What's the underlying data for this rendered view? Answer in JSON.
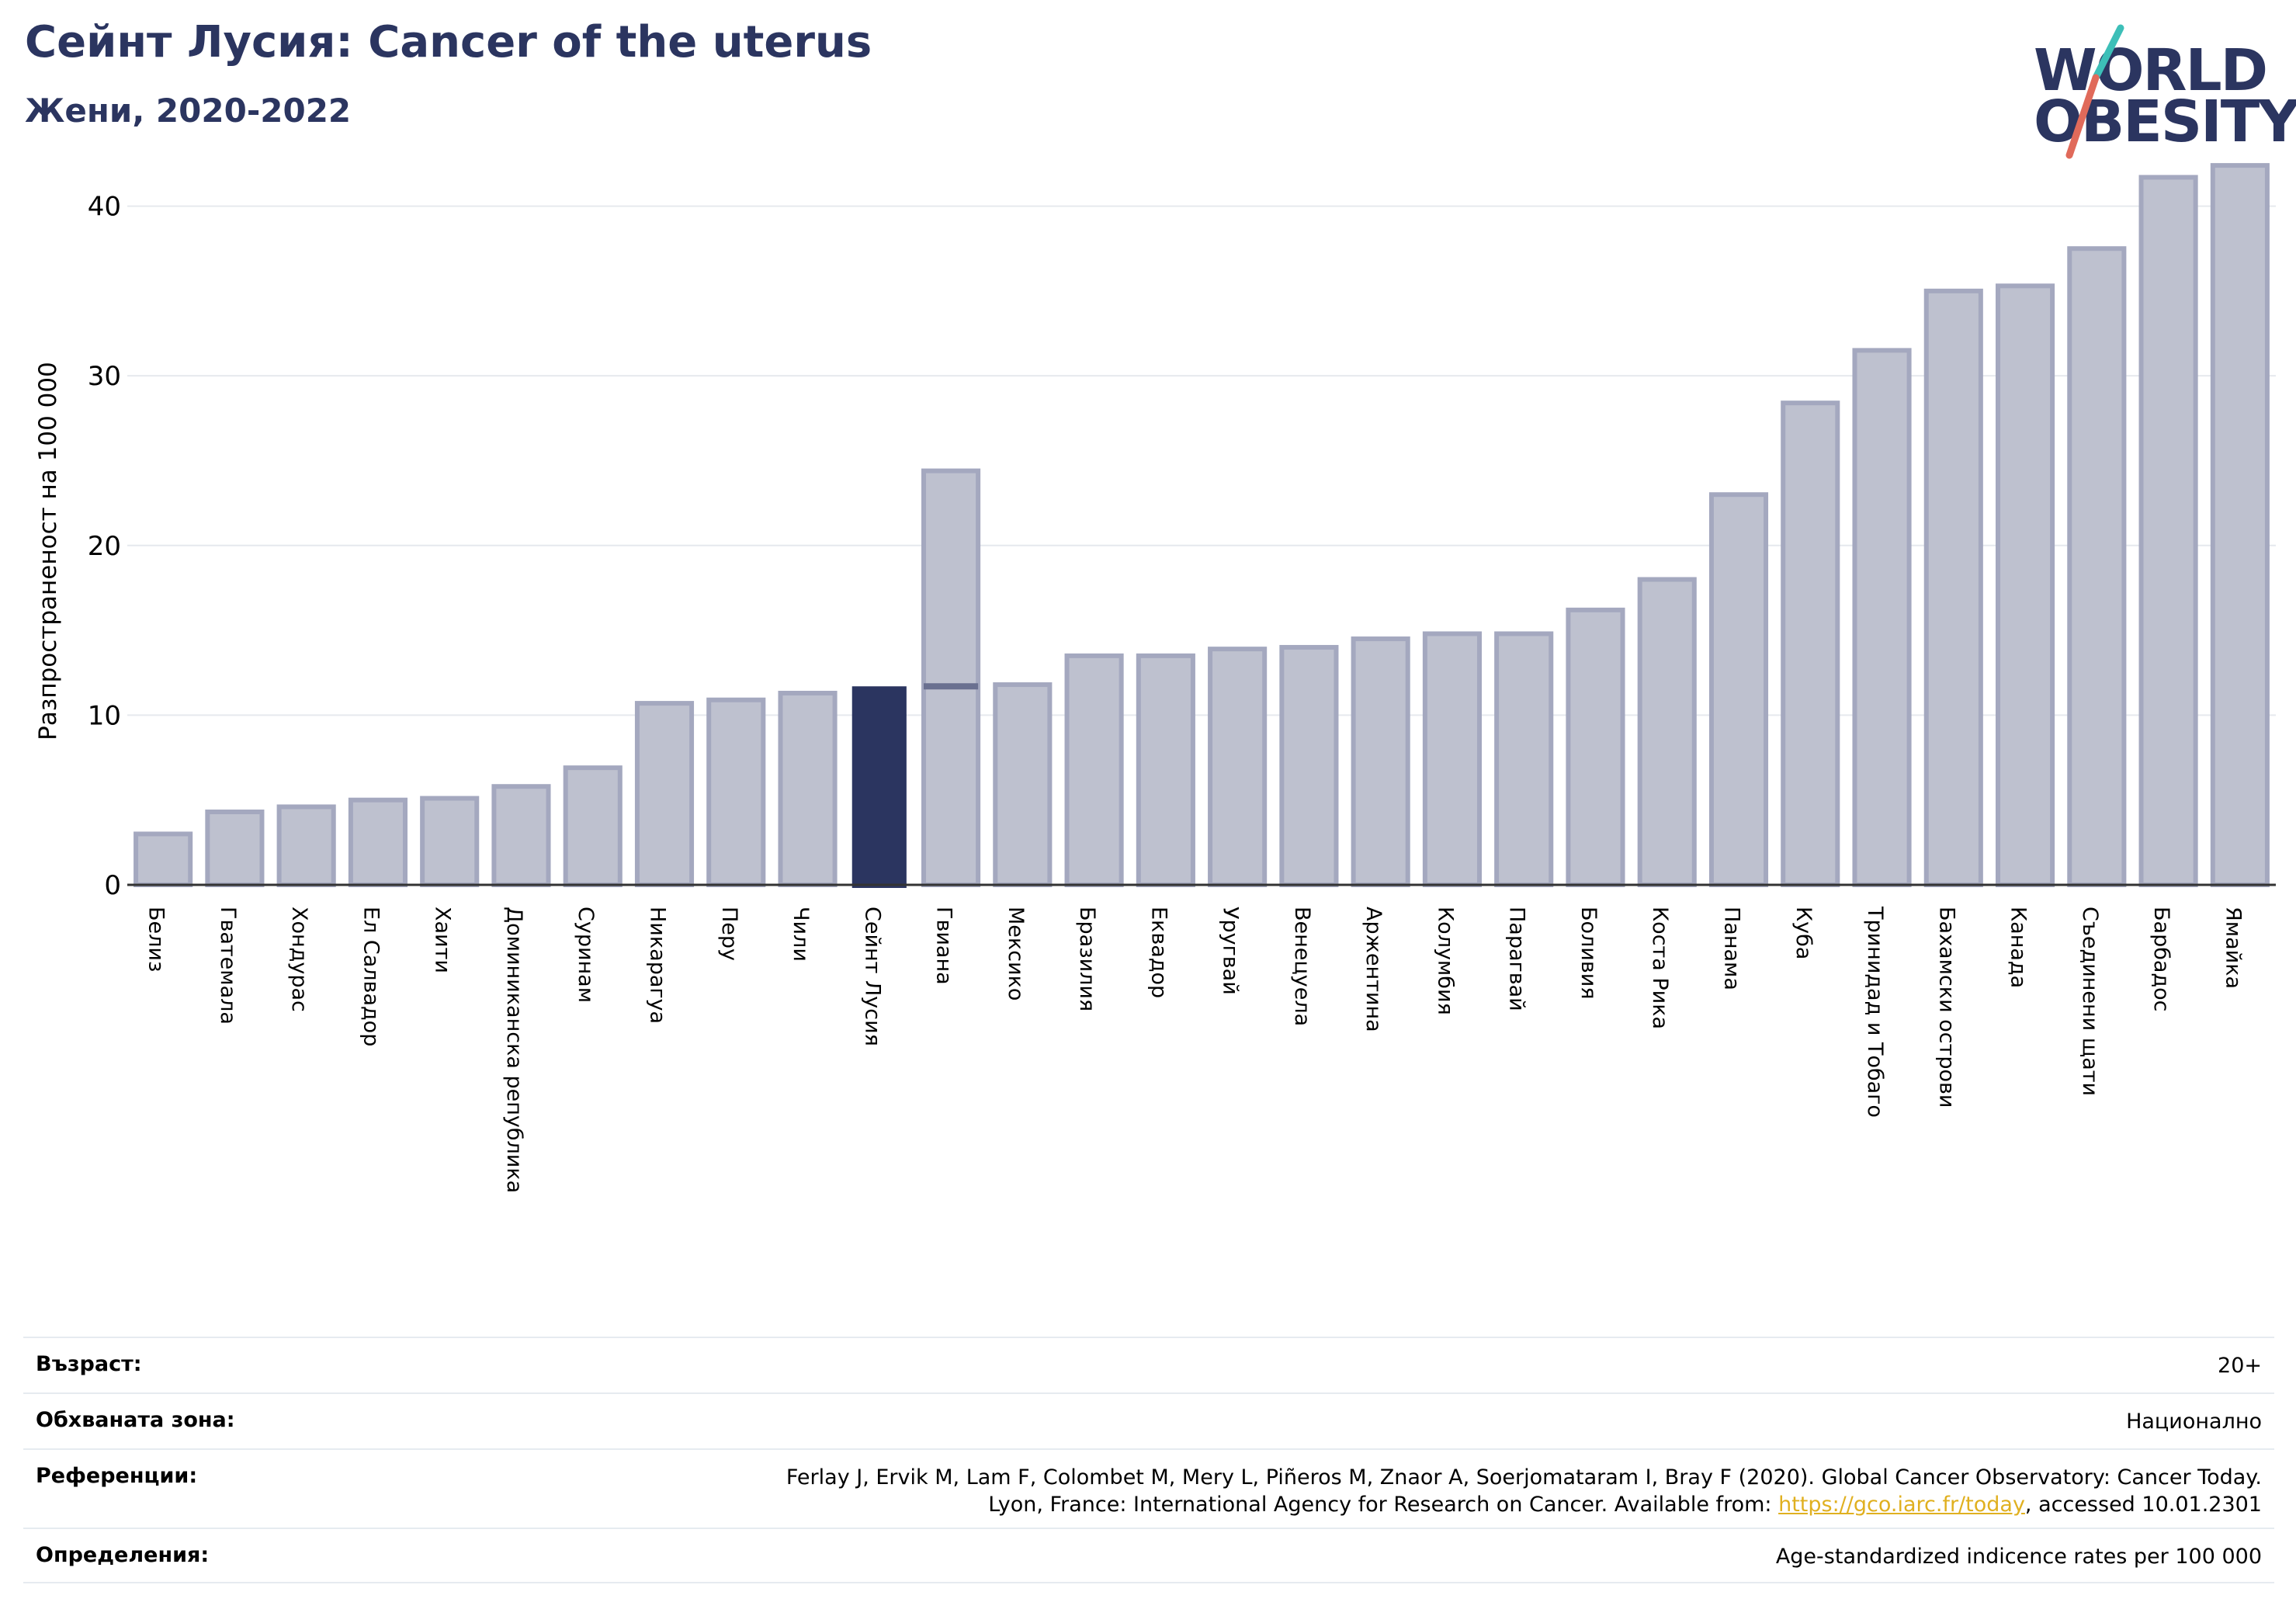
{
  "header": {
    "title": "Сейнт Лусия: Cancer of the uterus",
    "subtitle": "Жени, 2020-2022"
  },
  "logo": {
    "line1": "WORLD",
    "line2": "OBESITY"
  },
  "colors": {
    "highlight": "#2b3560",
    "bar_fill": "#bec1cf",
    "bar_edge": "#a4a8bf",
    "title": "#2b3560",
    "logo_teal": "#3dbfb8",
    "logo_coral": "#e06a5a",
    "link": "#e0b020"
  },
  "chart_data": {
    "type": "bar",
    "ylabel": "Разпространеност  на 100 000",
    "ylim": [
      0,
      43
    ],
    "yticks": [
      0,
      10,
      20,
      30,
      40
    ],
    "grid": true,
    "highlight": "Сейнт Лусия",
    "categories": [
      "Белиз",
      "Гватемала",
      "Хондурас",
      "Ел Салвадор",
      "Хаити",
      "Доминиканска република",
      "Суринам",
      "Никарагуа",
      "Перу",
      "Чили",
      "Сейнт Лусия",
      "Гвиана",
      "Мексико",
      "Бразилия",
      "Еквадор",
      "Уругвай",
      "Венецуела",
      "Аржентина",
      "Колумбия",
      "Парагвай",
      "Боливия",
      "Коста Рика",
      "Панама",
      "Куба",
      "Тринидад и Тобаго",
      "Бахамски острови",
      "Канада",
      "Съединени щати",
      "Барбадос",
      "Ямайка"
    ],
    "values": [
      3.0,
      4.3,
      4.6,
      5.0,
      5.1,
      5.8,
      6.9,
      10.7,
      10.9,
      11.3,
      11.7,
      24.4,
      11.8,
      13.5,
      13.5,
      13.9,
      14.0,
      14.5,
      14.8,
      14.8,
      16.2,
      18.0,
      23.0,
      28.4,
      31.5,
      35.0,
      35.3,
      37.5,
      41.7,
      42.4
    ]
  },
  "info": {
    "age_label": "Възраст:",
    "age_value": "20+",
    "area_label": "Обхваната зона:",
    "area_value": "Национално",
    "ref_label": "Референции:",
    "ref_line1": "Ferlay J, Ervik M, Lam F, Colombet M, Mery L, Piñeros M, Znaor A, Soerjomataram I, Bray F (2020). Global Cancer Observatory: Cancer Today.",
    "ref_line2_before": "Lyon, France: International Agency for Research on Cancer. Available from: ",
    "ref_link": "https://gco.iarc.fr/today",
    "ref_line2_after": ", accessed 10.01.2301",
    "def_label": "Определения:",
    "def_value": "Age-standardized indicence rates per 100 000"
  }
}
